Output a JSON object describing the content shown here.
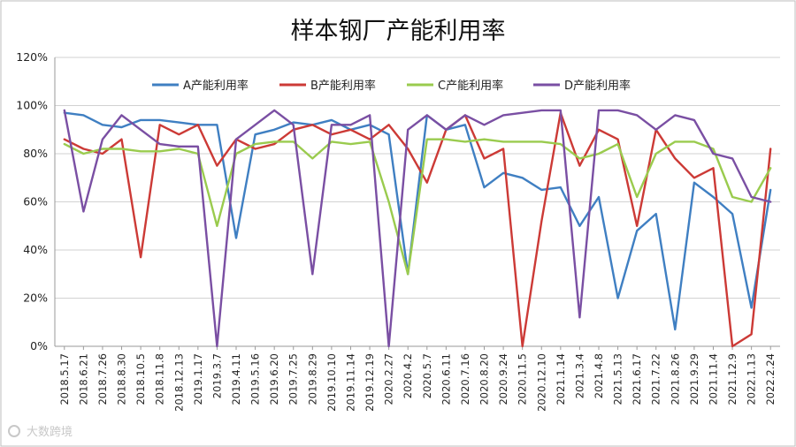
{
  "chart_data": {
    "type": "line",
    "title": "样本钢厂产能利用率",
    "yticks": [
      "0%",
      "20%",
      "40%",
      "60%",
      "80%",
      "100%",
      "120%"
    ],
    "ylim": [
      0,
      120
    ],
    "grid": "horizontal",
    "legend_position": "top",
    "x": [
      "2018.5.17",
      "2018.6.21",
      "2018.7.26",
      "2018.8.30",
      "2018.10.5",
      "2018.11.8",
      "2018.12.13",
      "2019.1.17",
      "2019.3.7",
      "2019.4.11",
      "2019.5.16",
      "2019.6.20",
      "2019.7.25",
      "2019.8.29",
      "2019.10.10",
      "2019.11.14",
      "2019.12.19",
      "2020.2.27",
      "2020.4.2",
      "2020.5.7",
      "2020.6.11",
      "2020.7.16",
      "2020.8.20",
      "2020.9.24",
      "2020.11.5",
      "2020.12.10",
      "2021.1.14",
      "2021.3.4",
      "2021.4.8",
      "2021.5.13",
      "2021.6.17",
      "2021.7.22",
      "2021.8.26",
      "2021.9.29",
      "2021.11.4",
      "2021.12.9",
      "2022.1.13",
      "2022.2.24"
    ],
    "series": [
      {
        "name": "A产能利用率",
        "color": "#3f7fc2",
        "values": [
          97,
          96,
          92,
          91,
          94,
          94,
          93,
          92,
          92,
          45,
          88,
          90,
          93,
          92,
          94,
          90,
          92,
          88,
          30,
          96,
          90,
          92,
          66,
          72,
          70,
          65,
          66,
          50,
          62,
          20,
          48,
          55,
          7,
          68,
          62,
          55,
          16,
          65
        ]
      },
      {
        "name": "B产能利用率",
        "color": "#cc3a36",
        "values": [
          86,
          82,
          80,
          86,
          37,
          92,
          88,
          92,
          75,
          86,
          82,
          84,
          90,
          92,
          88,
          90,
          86,
          92,
          82,
          68,
          90,
          96,
          78,
          82,
          0,
          52,
          97,
          75,
          90,
          86,
          50,
          90,
          78,
          70,
          74,
          0,
          5,
          82
        ]
      },
      {
        "name": "C产能利用率",
        "color": "#9acb4e",
        "values": [
          84,
          80,
          82,
          82,
          81,
          81,
          82,
          80,
          50,
          80,
          84,
          85,
          85,
          78,
          85,
          84,
          85,
          60,
          30,
          86,
          86,
          85,
          86,
          85,
          85,
          85,
          84,
          78,
          80,
          84,
          62,
          80,
          85,
          85,
          82,
          62,
          60,
          74
        ]
      },
      {
        "name": "D产能利用率",
        "color": "#7a4fa3",
        "values": [
          98,
          56,
          86,
          96,
          90,
          84,
          83,
          83,
          0,
          86,
          92,
          98,
          92,
          30,
          92,
          92,
          96,
          0,
          90,
          96,
          90,
          96,
          92,
          96,
          97,
          98,
          98,
          12,
          98,
          98,
          96,
          90,
          96,
          94,
          80,
          78,
          62,
          60
        ]
      }
    ]
  },
  "watermark": "大数跨境"
}
